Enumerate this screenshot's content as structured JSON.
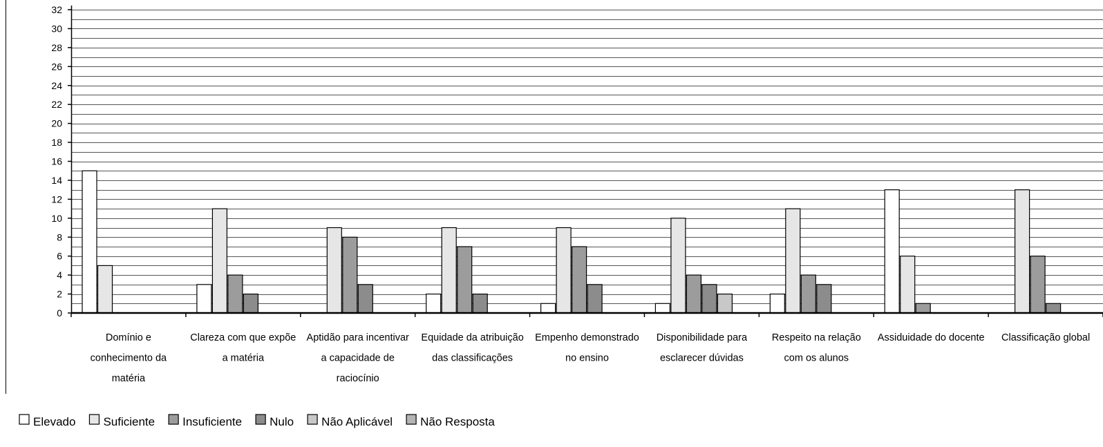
{
  "chart_data": {
    "type": "bar",
    "title": "",
    "xlabel": "",
    "ylabel": "",
    "ylim": [
      0,
      32
    ],
    "ytick_step": 2,
    "grid": "horizontal-minor",
    "legend_position": "bottom-left",
    "categories": [
      [
        "Domínio e",
        "conhecimento da",
        "matéria"
      ],
      [
        "Clareza com que expõe",
        "a matéria"
      ],
      [
        "Aptidão para incentivar",
        "a capacidade de",
        "raciocínio"
      ],
      [
        "Equidade da atribuição",
        "das classificações"
      ],
      [
        "Empenho demonstrado",
        "no ensino"
      ],
      [
        "Disponibilidade para",
        "esclarecer dúvidas"
      ],
      [
        "Respeito na relação",
        "com os alunos"
      ],
      [
        "Assiduidade do docente"
      ],
      [
        "Classificação global"
      ]
    ],
    "series": [
      {
        "name": "Elevado",
        "color": "#ffffff",
        "values": [
          15,
          3,
          0,
          2,
          1,
          1,
          2,
          13,
          0
        ]
      },
      {
        "name": "Suficiente",
        "color": "#e6e6e6",
        "values": [
          5,
          11,
          9,
          9,
          9,
          10,
          11,
          6,
          13
        ]
      },
      {
        "name": "Insuficiente",
        "color": "#9c9c9c",
        "values": [
          0,
          4,
          8,
          7,
          7,
          4,
          4,
          1,
          6
        ]
      },
      {
        "name": "Nulo",
        "color": "#8c8c8c",
        "values": [
          0,
          2,
          3,
          2,
          3,
          3,
          3,
          0,
          1
        ]
      },
      {
        "name": "Não Aplicável",
        "color": "#c8c8c8",
        "values": [
          0,
          0,
          0,
          0,
          0,
          2,
          0,
          0,
          0
        ]
      },
      {
        "name": "Não Resposta",
        "color": "#b4b4b4",
        "values": [
          0,
          0,
          0,
          0,
          0,
          0,
          0,
          0,
          0
        ]
      }
    ]
  }
}
